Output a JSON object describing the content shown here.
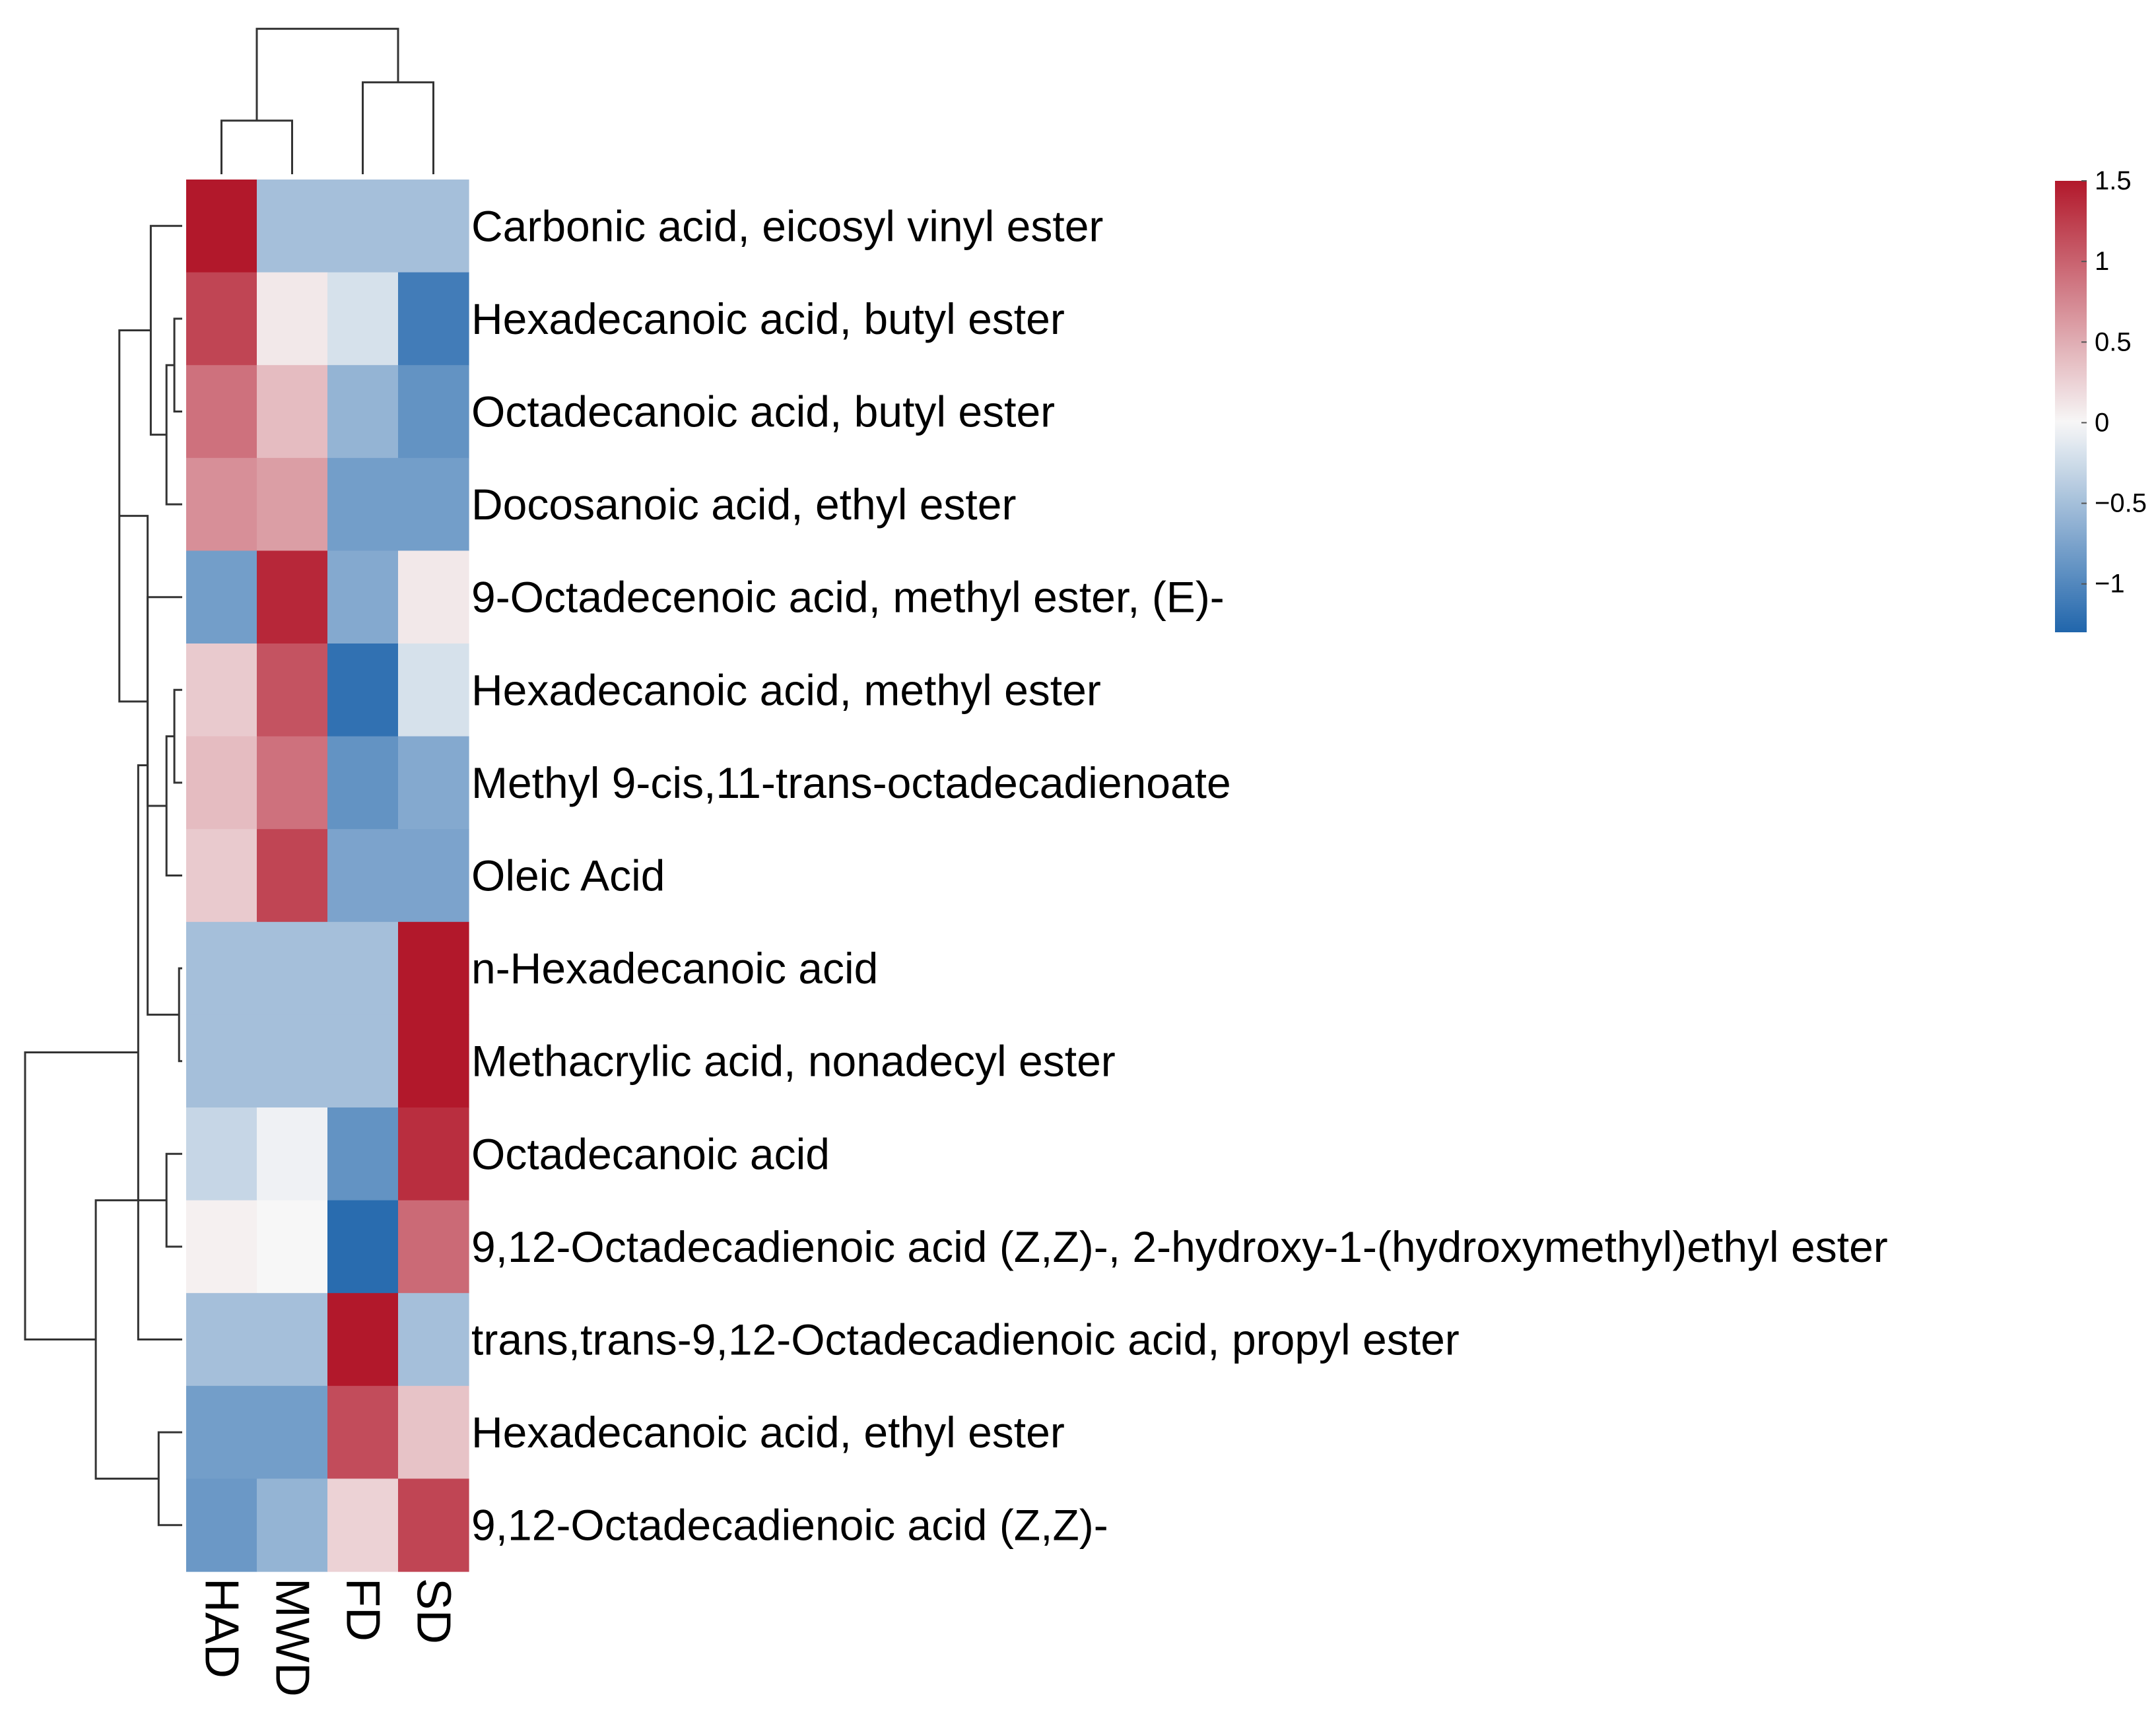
{
  "chart_data": {
    "type": "heatmap",
    "title": "",
    "columns": [
      "HAD",
      "MWD",
      "FD",
      "SD"
    ],
    "rows": [
      "Carbonic acid, eicosyl vinyl ester",
      "Hexadecanoic acid, butyl ester",
      "Octadecanoic acid, butyl ester",
      "Docosanoic acid, ethyl ester",
      "9-Octadecenoic acid, methyl ester, (E)-",
      "Hexadecanoic acid, methyl ester",
      "Methyl 9-cis,11-trans-octadecadienoate",
      "Oleic Acid",
      "n-Hexadecanoic acid",
      "Methacrylic acid, nonadecyl ester",
      "Octadecanoic acid",
      "9,12-Octadecadienoic acid (Z,Z)-, 2-hydroxy-1-(hydroxymethyl)ethyl ester",
      "trans,trans-9,12-Octadecadienoic acid, propyl ester",
      "Hexadecanoic acid, ethyl ester",
      "9,12-Octadecadienoic acid (Z,Z)-"
    ],
    "values": [
      [
        1.5,
        -0.5,
        -0.5,
        -0.5
      ],
      [
        1.2,
        0.1,
        -0.2,
        -1.1
      ],
      [
        0.9,
        0.4,
        -0.6,
        -0.9
      ],
      [
        0.7,
        0.6,
        -0.8,
        -0.8
      ],
      [
        -0.8,
        1.4,
        -0.7,
        0.1
      ],
      [
        0.3,
        1.1,
        -1.2,
        -0.2
      ],
      [
        0.4,
        0.9,
        -0.9,
        -0.7
      ],
      [
        0.3,
        1.2,
        -0.75,
        -0.75
      ],
      [
        -0.5,
        -0.5,
        -0.5,
        1.5
      ],
      [
        -0.5,
        -0.5,
        -0.5,
        1.5
      ],
      [
        -0.3,
        -0.05,
        -0.9,
        1.35
      ],
      [
        0.05,
        0.0,
        -1.25,
        0.95
      ],
      [
        -0.5,
        -0.5,
        1.5,
        -0.5
      ],
      [
        -0.8,
        -0.8,
        1.15,
        0.35
      ],
      [
        -0.85,
        -0.6,
        0.25,
        1.2
      ]
    ],
    "colorbar": {
      "range": [
        -1.3,
        1.5
      ],
      "ticks": [
        1.5,
        1,
        0.5,
        0,
        -0.5,
        -1
      ],
      "tick_labels": [
        "1.5",
        "1",
        "0.5",
        "0",
        "−0.5",
        "−1"
      ],
      "low_color": "#2166ac",
      "mid_color": "#f7f7f7",
      "high_color": "#b2182b"
    },
    "column_dendrogram": {
      "merges": [
        [
          0,
          1
        ],
        [
          2,
          3
        ],
        [
          -1,
          -2
        ]
      ],
      "heights": [
        0.35,
        0.6,
        0.95
      ]
    },
    "row_dendrogram": {
      "merges": [
        [
          1,
          2
        ],
        [
          3,
          -1
        ],
        [
          0,
          -2
        ],
        [
          5,
          6
        ],
        [
          7,
          -4
        ],
        [
          4,
          -5
        ],
        [
          -3,
          -6
        ],
        [
          8,
          9
        ],
        [
          10,
          11
        ],
        [
          -7,
          -8
        ],
        [
          13,
          14
        ],
        [
          12,
          -10
        ],
        [
          -9,
          -11
        ],
        [
          -12,
          -13
        ]
      ],
      "heights": [
        0.05,
        0.1,
        0.2,
        0.05,
        0.1,
        0.22,
        0.4,
        0.02,
        0.1,
        0.22,
        0.15,
        0.28,
        0.55,
        1.0
      ]
    },
    "legend_position": "top-right"
  }
}
